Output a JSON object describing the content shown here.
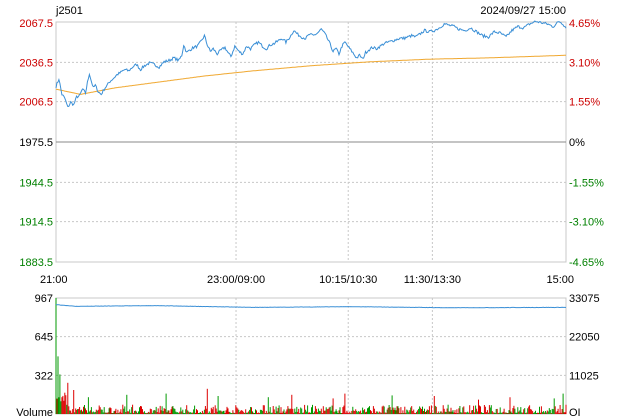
{
  "header": {
    "symbol": "j2501",
    "datetime": "2024/09/27 15:00"
  },
  "colors": {
    "up": "#cc0000",
    "down": "#008000",
    "flat": "#000000",
    "price_line": "#3a8fd6",
    "avg_line": "#f0a830",
    "grid": "#c8c8c8",
    "vol_up": "#dd0000",
    "vol_down": "#009900",
    "oi_line": "#3a8fd6"
  },
  "chart_data": [
    {
      "type": "line",
      "name": "intraday price",
      "x_ticks": [
        "21:00",
        "23:00/09:00",
        "10:15/10:30",
        "11:30/13:30",
        "15:00"
      ],
      "y_ticks_left": [
        "2067.5",
        "2036.5",
        "2006.5",
        "1975.5",
        "1944.5",
        "1914.5",
        "1883.5"
      ],
      "y_ticks_right": [
        "4.65%",
        "3.10%",
        "1.55%",
        "0%",
        "-1.55%",
        "-3.10%",
        "-4.65%"
      ],
      "ylim": [
        1883.5,
        2067.5
      ],
      "prev_settle": 1975.5,
      "anchors_price": [
        [
          0,
          2018
        ],
        [
          3,
          2024
        ],
        [
          6,
          2012
        ],
        [
          9,
          2009
        ],
        [
          12,
          2002
        ],
        [
          15,
          2006
        ],
        [
          18,
          2004
        ],
        [
          21,
          2010
        ],
        [
          24,
          2011
        ],
        [
          27,
          2016
        ],
        [
          30,
          2013
        ],
        [
          32,
          2021
        ],
        [
          34,
          2028
        ],
        [
          36,
          2022
        ],
        [
          38,
          2017
        ],
        [
          40,
          2019
        ],
        [
          43,
          2014
        ],
        [
          46,
          2012
        ],
        [
          49,
          2016
        ],
        [
          52,
          2019
        ],
        [
          55,
          2022
        ],
        [
          58,
          2024
        ],
        [
          62,
          2027
        ],
        [
          66,
          2029
        ],
        [
          70,
          2031
        ],
        [
          74,
          2030
        ],
        [
          78,
          2033
        ],
        [
          82,
          2035
        ],
        [
          86,
          2031
        ],
        [
          90,
          2034
        ],
        [
          95,
          2036
        ],
        [
          100,
          2035
        ],
        [
          105,
          2033
        ],
        [
          110,
          2037
        ],
        [
          115,
          2038
        ],
        [
          120,
          2040
        ],
        [
          125,
          2038
        ],
        [
          128,
          2042
        ],
        [
          130,
          2050
        ],
        [
          133,
          2044
        ],
        [
          136,
          2046
        ],
        [
          140,
          2048
        ],
        [
          144,
          2049
        ],
        [
          148,
          2053
        ],
        [
          151,
          2057
        ],
        [
          154,
          2050
        ],
        [
          157,
          2045
        ],
        [
          160,
          2047
        ],
        [
          164,
          2043
        ],
        [
          168,
          2046
        ],
        [
          172,
          2048
        ],
        [
          175,
          2044
        ],
        [
          178,
          2041
        ],
        [
          182,
          2049
        ],
        [
          186,
          2045
        ],
        [
          190,
          2043
        ],
        [
          194,
          2049
        ],
        [
          198,
          2047
        ],
        [
          202,
          2050
        ],
        [
          206,
          2052
        ],
        [
          210,
          2049
        ],
        [
          214,
          2047
        ],
        [
          218,
          2050
        ],
        [
          222,
          2051
        ],
        [
          226,
          2053
        ],
        [
          230,
          2055
        ],
        [
          234,
          2052
        ],
        [
          238,
          2056
        ],
        [
          242,
          2061
        ],
        [
          246,
          2058
        ],
        [
          250,
          2056
        ],
        [
          254,
          2055
        ],
        [
          258,
          2058
        ],
        [
          262,
          2057
        ],
        [
          266,
          2059
        ],
        [
          270,
          2062
        ],
        [
          274,
          2058
        ],
        [
          278,
          2052
        ],
        [
          282,
          2045
        ],
        [
          285,
          2047
        ],
        [
          288,
          2043
        ],
        [
          291,
          2049
        ],
        [
          294,
          2052
        ],
        [
          298,
          2048
        ],
        [
          302,
          2044
        ],
        [
          306,
          2040
        ],
        [
          309,
          2042
        ],
        [
          312,
          2039
        ],
        [
          315,
          2044
        ],
        [
          318,
          2046
        ],
        [
          322,
          2048
        ],
        [
          326,
          2047
        ],
        [
          330,
          2049
        ],
        [
          334,
          2051
        ],
        [
          338,
          2052
        ],
        [
          342,
          2053
        ],
        [
          346,
          2054
        ],
        [
          350,
          2055
        ],
        [
          354,
          2055
        ],
        [
          358,
          2056
        ],
        [
          362,
          2057
        ],
        [
          366,
          2056
        ],
        [
          370,
          2058
        ],
        [
          375,
          2061
        ],
        [
          380,
          2060
        ],
        [
          385,
          2061
        ],
        [
          390,
          2063
        ],
        [
          395,
          2066
        ],
        [
          400,
          2065
        ],
        [
          405,
          2064
        ],
        [
          410,
          2062
        ],
        [
          416,
          2061
        ],
        [
          422,
          2063
        ],
        [
          428,
          2060
        ],
        [
          434,
          2057
        ],
        [
          440,
          2056
        ],
        [
          446,
          2060
        ],
        [
          452,
          2059
        ],
        [
          458,
          2056
        ],
        [
          464,
          2061
        ],
        [
          470,
          2064
        ],
        [
          476,
          2063
        ],
        [
          482,
          2066
        ],
        [
          488,
          2068
        ],
        [
          494,
          2067
        ],
        [
          500,
          2066
        ],
        [
          506,
          2064
        ],
        [
          512,
          2068
        ],
        [
          516,
          2066
        ],
        [
          519,
          2063
        ]
      ],
      "anchors_avg": [
        [
          0,
          2016
        ],
        [
          25,
          2012
        ],
        [
          60,
          2017
        ],
        [
          100,
          2021
        ],
        [
          150,
          2026
        ],
        [
          200,
          2030
        ],
        [
          260,
          2034
        ],
        [
          320,
          2037
        ],
        [
          380,
          2039
        ],
        [
          440,
          2040
        ],
        [
          480,
          2041
        ],
        [
          519,
          2042
        ]
      ]
    },
    {
      "type": "bar",
      "name": "volume and open interest",
      "y_ticks_left": [
        "967",
        "645",
        "322",
        "Volume"
      ],
      "y_ticks_right": [
        "33075",
        "22050",
        "11025",
        "OI"
      ],
      "ylim": [
        0,
        967
      ],
      "oi_ylim": [
        0,
        33075
      ],
      "oi_approx": [
        [
          0,
          31200
        ],
        [
          20,
          30700
        ],
        [
          100,
          30900
        ],
        [
          200,
          30400
        ],
        [
          300,
          30600
        ],
        [
          400,
          30300
        ],
        [
          519,
          30400
        ]
      ],
      "spikes": [
        [
          0,
          967
        ],
        [
          2,
          480
        ],
        [
          4,
          330
        ],
        [
          12,
          260
        ],
        [
          18,
          200
        ],
        [
          33,
          140
        ],
        [
          72,
          160
        ],
        [
          112,
          170
        ],
        [
          154,
          210
        ],
        [
          165,
          150
        ],
        [
          216,
          140
        ],
        [
          240,
          160
        ],
        [
          282,
          130
        ],
        [
          294,
          170
        ],
        [
          342,
          155
        ],
        [
          385,
          150
        ],
        [
          430,
          120
        ],
        [
          462,
          140
        ],
        [
          507,
          130
        ],
        [
          516,
          170
        ]
      ]
    }
  ]
}
